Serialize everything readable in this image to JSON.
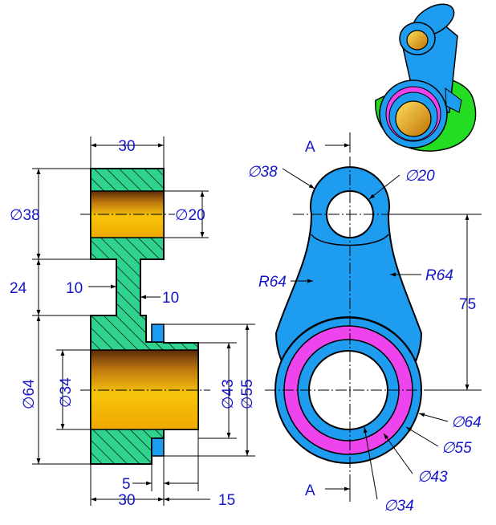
{
  "colors": {
    "section_fill": "#2fd38e",
    "bore_light": "#f6c40a",
    "bore_dark": "#5a2a08",
    "body_blue": "#1e9cf0",
    "ring_magenta": "#ee44ee",
    "iso_green": "#22dd22",
    "dim_text": "#1414c8"
  },
  "section_view": {
    "dims": {
      "top_width": "30",
      "small_dia": "∅38",
      "small_bore": "∅20",
      "gap": "24",
      "web_left": "10",
      "web_right": "10",
      "big_dia": "∅64",
      "big_bore": "∅34",
      "ring_inner": "∅43",
      "ring_outer": "∅55",
      "groove": "5",
      "bottom_width": "30",
      "offset": "15"
    }
  },
  "front_view": {
    "section_label_top": "A",
    "section_label_bottom": "A",
    "dims": {
      "small_outer": "∅38",
      "small_bore": "∅20",
      "radius_left": "R64",
      "radius_right": "R64",
      "center_distance": "75",
      "big_outer": "∅64",
      "ring_outer": "∅55",
      "ring_inner": "∅43",
      "bore": "∅34"
    }
  }
}
